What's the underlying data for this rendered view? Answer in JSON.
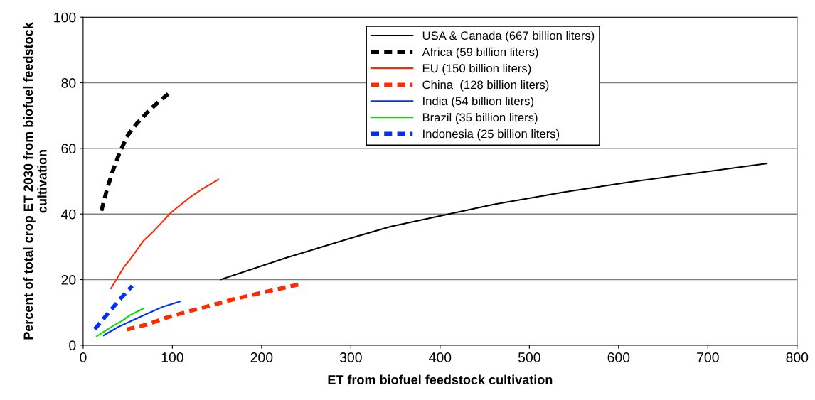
{
  "chart_data": {
    "type": "line",
    "xlabel": "ET from biofuel feedstock cultivation",
    "ylabel": "Percent of total crop ET 2030 from biofuel feedstock cultivation",
    "xlim": [
      0,
      800
    ],
    "xticks": [
      0,
      100,
      200,
      300,
      400,
      500,
      600,
      700,
      800
    ],
    "ylim": [
      0,
      100
    ],
    "yticks": [
      0,
      20,
      40,
      60,
      80,
      100
    ],
    "grid": "y",
    "legend": "top",
    "marker": "none",
    "series": [
      {
        "name": "USA & Canada (667 billion liters)",
        "color": "#000000",
        "line_style": "solid",
        "x": [
          154,
          229,
          307,
          345,
          460,
          537,
          611,
          766
        ],
        "values": [
          20,
          26.8,
          33.2,
          36.2,
          42.9,
          46.6,
          49.7,
          55.4
        ]
      },
      {
        "name": "Africa (59 billion liters)",
        "color": "#000000",
        "line_style": "dashed",
        "x": [
          20.5,
          26.3,
          32.9,
          40.9,
          50.2,
          60.8,
          74.1,
          84.7,
          97.5
        ],
        "values": [
          41,
          47.1,
          52.9,
          58.7,
          64.1,
          67.8,
          71.6,
          74.2,
          77.1
        ]
      },
      {
        "name": "EU (150 billion liters)",
        "color": "#ff2a00",
        "line_style": "solid",
        "x": [
          31.1,
          46.2,
          52.8,
          67.5,
          78.1,
          98,
          106,
          119.3,
          133.9,
          151.6
        ],
        "values": [
          17.3,
          24,
          26.2,
          31.8,
          34.5,
          40.3,
          42.1,
          45,
          47.7,
          50.5
        ]
      },
      {
        "name": "China  (128 billion liters)",
        "color": "#ff2a00",
        "line_style": "dashed",
        "x": [
          48.9,
          71.4,
          91.4,
          103.3,
          120.6,
          151.1,
          169.7,
          196.8,
          243
        ],
        "values": [
          4.8,
          6.3,
          8.2,
          9.2,
          10.5,
          12.7,
          14.1,
          15.8,
          18.6
        ]
      },
      {
        "name": "India (54 billion liters)",
        "color": "#0030ff",
        "line_style": "solid",
        "x": [
          23.1,
          39.6,
          66.1,
          90,
          109.2
        ],
        "values": [
          3,
          5.6,
          8.9,
          11.8,
          13.4
        ]
      },
      {
        "name": "Brazil (35 billion liters)",
        "color": "#00e000",
        "line_style": "solid",
        "x": [
          15.1,
          34.3,
          43.6,
          52.8,
          67.5
        ],
        "values": [
          2.7,
          6,
          7.4,
          9.2,
          11.2
        ]
      },
      {
        "name": "Indonesia (25 billion liters)",
        "color": "#0030ff",
        "line_style": "dashed",
        "x": [
          13,
          27.6,
          40.9,
          55
        ],
        "values": [
          4.9,
          9.6,
          13.9,
          18.1
        ]
      }
    ]
  }
}
